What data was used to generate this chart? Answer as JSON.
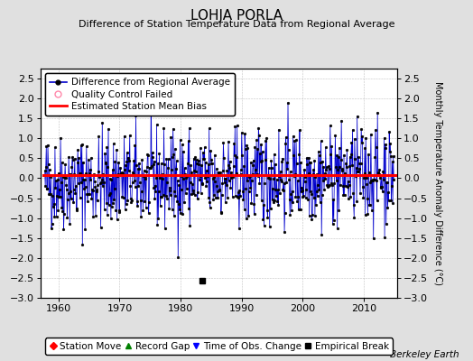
{
  "title": "LOHJA PORLA",
  "subtitle": "Difference of Station Temperature Data from Regional Average",
  "ylabel_right": "Monthly Temperature Anomaly Difference (°C)",
  "xlim": [
    1957.0,
    2015.5
  ],
  "ylim": [
    -3.0,
    2.75
  ],
  "yticks": [
    -3,
    -2.5,
    -2,
    -1.5,
    -1,
    -0.5,
    0,
    0.5,
    1,
    1.5,
    2,
    2.5
  ],
  "xticks": [
    1960,
    1970,
    1980,
    1990,
    2000,
    2010
  ],
  "bias_level": 0.07,
  "bias_x_start": 1957.5,
  "bias_x_end": 2015.5,
  "empirical_break_x": 1983.5,
  "empirical_break_y": -2.58,
  "background_color": "#e0e0e0",
  "plot_bg_color": "#ffffff",
  "line_color": "#0000cc",
  "bias_color": "#ff0000",
  "qc_color": "#ff88aa",
  "marker_color": "#000000",
  "title_fontsize": 11,
  "subtitle_fontsize": 8,
  "tick_fontsize": 8,
  "legend_fontsize": 7.5,
  "berkeley_earth_fontsize": 7.5,
  "seed": 42,
  "years_start": 1957.75,
  "years_end": 2014.92
}
